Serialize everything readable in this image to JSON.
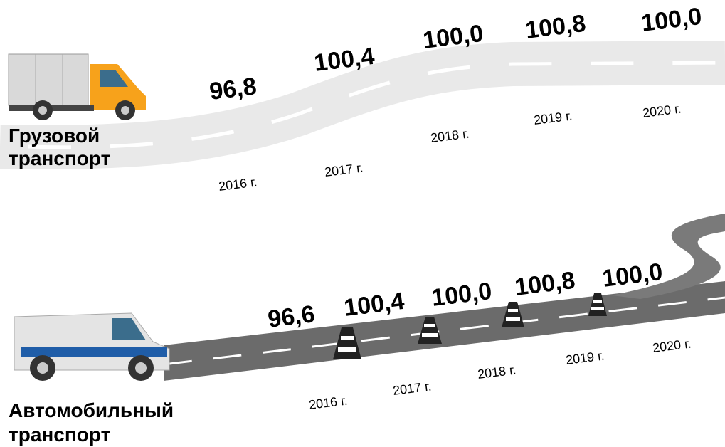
{
  "sections": [
    {
      "label_lines": [
        "Грузовой",
        "транспорт"
      ],
      "items": [
        {
          "year": "2016 г.",
          "value": "96,8"
        },
        {
          "year": "2017 г.",
          "value": "100,4"
        },
        {
          "year": "2018 г.",
          "value": "100,0"
        },
        {
          "year": "2019 г.",
          "value": "100,8"
        },
        {
          "year": "2020 г.",
          "value": "100,0"
        }
      ]
    },
    {
      "label_lines": [
        "Автомобильный",
        "транспорт"
      ],
      "items": [
        {
          "year": "2016 г.",
          "value": "96,6"
        },
        {
          "year": "2017 г.",
          "value": "100,4"
        },
        {
          "year": "2018 г.",
          "value": "100,0"
        },
        {
          "year": "2019 г.",
          "value": "100,8"
        },
        {
          "year": "2020 г.",
          "value": "100,0"
        }
      ]
    }
  ]
}
